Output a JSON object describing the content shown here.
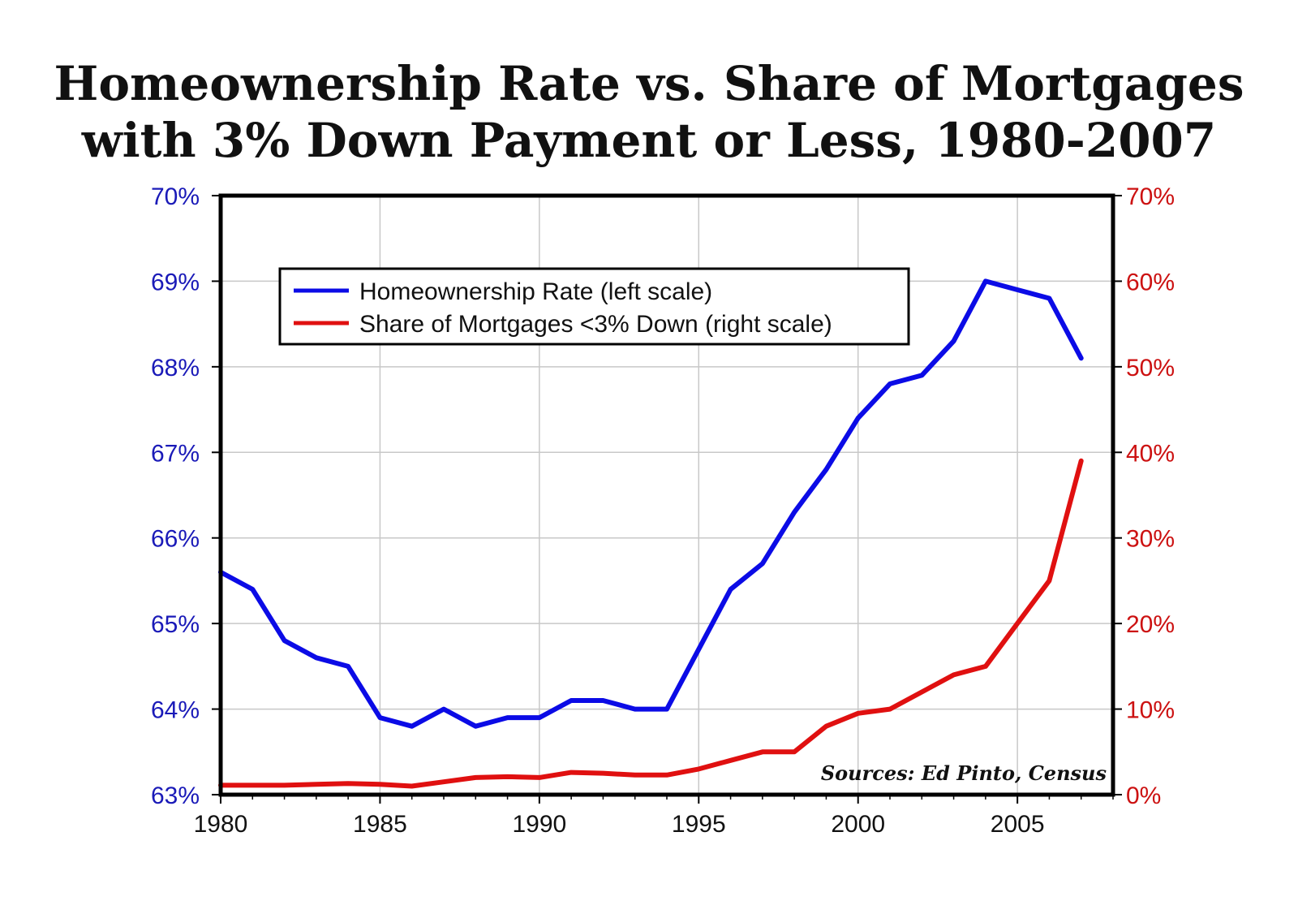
{
  "colors": {
    "left_axis": "#1a1ab8",
    "right_axis": "#cc1111",
    "series_homeownership": "#0b0be6",
    "series_mortgages": "#e01010",
    "grid": "#c8c8c8",
    "frame": "#000000"
  },
  "chart_data": {
    "type": "line",
    "title": "Homeownership Rate vs. Share of Mortgages with 3% Down Payment or Less, 1980-2007",
    "title_lines": [
      "Homeownership Rate vs. Share of Mortgages",
      "with 3% Down Payment or Less, 1980-2007"
    ],
    "x": [
      1980,
      1981,
      1982,
      1983,
      1984,
      1985,
      1986,
      1987,
      1988,
      1989,
      1990,
      1991,
      1992,
      1993,
      1994,
      1995,
      1996,
      1997,
      1998,
      1999,
      2000,
      2001,
      2002,
      2003,
      2004,
      2005,
      2006,
      2007
    ],
    "xlim": [
      1980,
      2008
    ],
    "x_ticks": [
      1980,
      1985,
      1990,
      1995,
      2000,
      2005
    ],
    "x_tick_labels": [
      "1980",
      "1985",
      "1990",
      "1995",
      "2000",
      "2005"
    ],
    "left_axis": {
      "ylim": [
        63,
        70
      ],
      "ticks": [
        63,
        64,
        65,
        66,
        67,
        68,
        69,
        70
      ],
      "tick_labels": [
        "63%",
        "64%",
        "65%",
        "66%",
        "67%",
        "68%",
        "69%",
        "70%"
      ]
    },
    "right_axis": {
      "ylim": [
        0,
        70
      ],
      "ticks": [
        0,
        10,
        20,
        30,
        40,
        50,
        60,
        70
      ],
      "tick_labels": [
        "0%",
        "10%",
        "20%",
        "30%",
        "40%",
        "50%",
        "60%",
        "70%"
      ]
    },
    "series": [
      {
        "name": "Homeownership Rate (left scale)",
        "axis": "left",
        "values": [
          65.6,
          65.4,
          64.8,
          64.6,
          64.5,
          63.9,
          63.8,
          64.0,
          63.8,
          63.9,
          63.9,
          64.1,
          64.1,
          64.0,
          64.0,
          64.7,
          65.4,
          65.7,
          66.3,
          66.8,
          67.4,
          67.8,
          67.9,
          68.3,
          69.0,
          68.9,
          68.8,
          68.1
        ]
      },
      {
        "name": "Share of Mortgages <3% Down (right scale)",
        "axis": "right",
        "values": [
          1.1,
          1.1,
          1.1,
          1.2,
          1.3,
          1.2,
          1.0,
          1.5,
          2.0,
          2.1,
          2.0,
          2.6,
          2.5,
          2.3,
          2.3,
          3.0,
          4.0,
          5.0,
          5.0,
          8.0,
          9.5,
          10.0,
          12.0,
          14.0,
          15.0,
          20.0,
          25.0,
          39.0
        ]
      }
    ],
    "legend_position": "top-left",
    "grid": true,
    "source": "Sources: Ed Pinto, Census"
  }
}
